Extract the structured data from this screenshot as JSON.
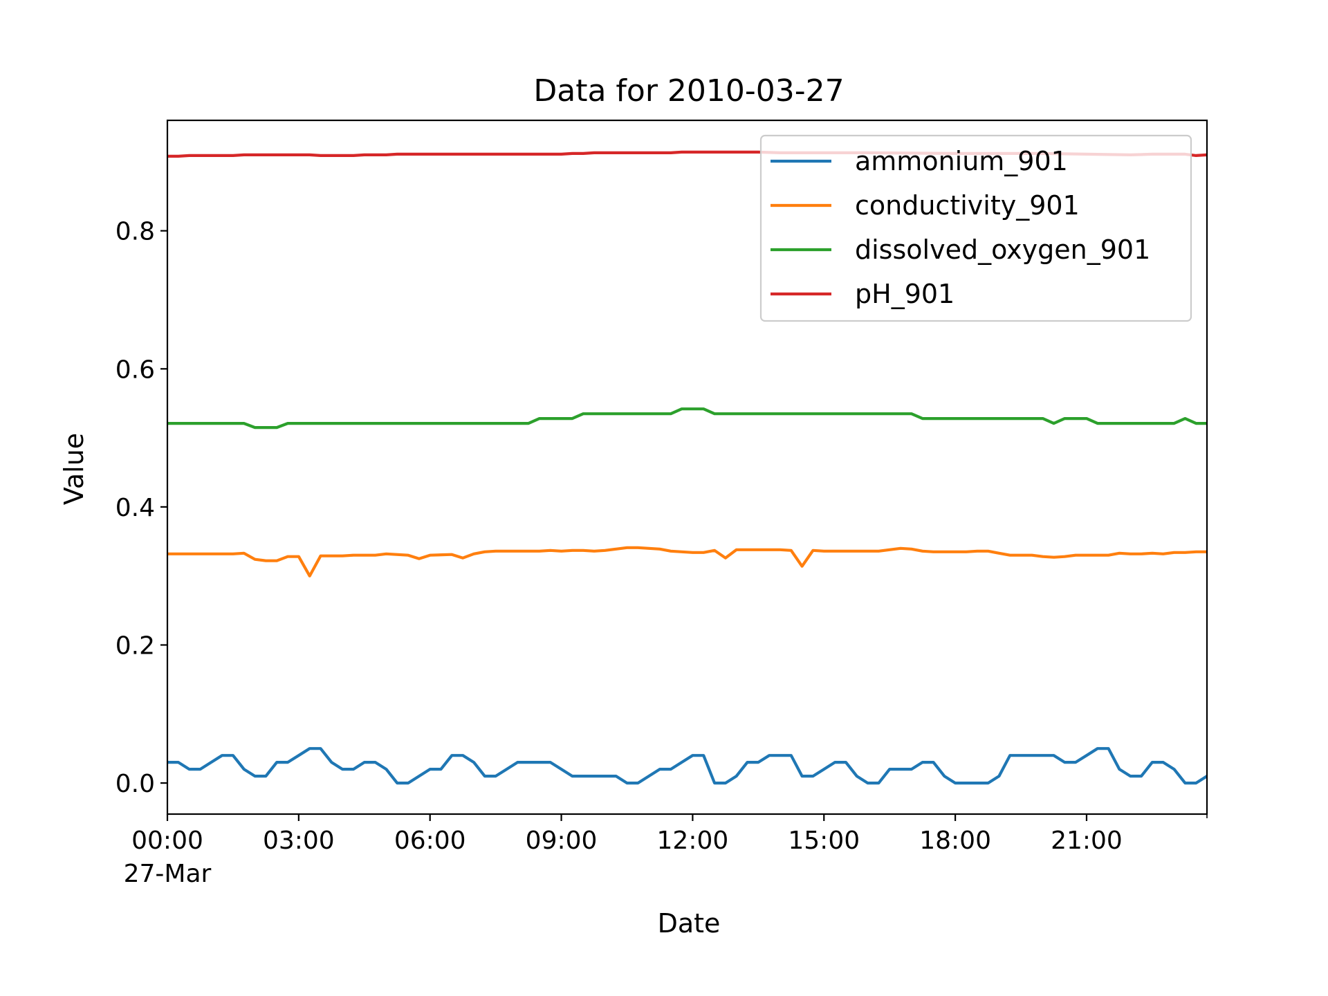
{
  "chart_data": {
    "type": "line",
    "title": "Data for 2010-03-27",
    "xlabel": "Date",
    "ylabel": "Value",
    "xlim": [
      "2010-03-27 00:00",
      "2010-03-27 23:45"
    ],
    "ylim": [
      -0.045,
      0.96
    ],
    "x_ticks": [
      {
        "value": "2010-03-27 00:00",
        "label": "00:00",
        "sublabel": "27-Mar"
      },
      {
        "value": "2010-03-27 03:00",
        "label": "03:00"
      },
      {
        "value": "2010-03-27 06:00",
        "label": "06:00"
      },
      {
        "value": "2010-03-27 09:00",
        "label": "09:00"
      },
      {
        "value": "2010-03-27 12:00",
        "label": "12:00"
      },
      {
        "value": "2010-03-27 15:00",
        "label": "15:00"
      },
      {
        "value": "2010-03-27 18:00",
        "label": "18:00"
      },
      {
        "value": "2010-03-27 21:00",
        "label": "21:00"
      }
    ],
    "y_ticks": [
      {
        "value": 0.0,
        "label": "0.0"
      },
      {
        "value": 0.2,
        "label": "0.2"
      },
      {
        "value": 0.4,
        "label": "0.4"
      },
      {
        "value": 0.6,
        "label": "0.6"
      },
      {
        "value": 0.8,
        "label": "0.8"
      }
    ],
    "grid": false,
    "legend_position": "top-right",
    "series": [
      {
        "name": "ammonium_901",
        "color": "#1f77b4",
        "points": [
          [
            "2010-03-27 00:00",
            0.03
          ],
          [
            "2010-03-27 00:15",
            0.03
          ],
          [
            "2010-03-27 00:30",
            0.02
          ],
          [
            "2010-03-27 00:45",
            0.02
          ],
          [
            "2010-03-27 01:00",
            0.03
          ],
          [
            "2010-03-27 01:15",
            0.04
          ],
          [
            "2010-03-27 01:30",
            0.04
          ],
          [
            "2010-03-27 01:45",
            0.02
          ],
          [
            "2010-03-27 02:00",
            0.01
          ],
          [
            "2010-03-27 02:15",
            0.01
          ],
          [
            "2010-03-27 02:30",
            0.03
          ],
          [
            "2010-03-27 02:45",
            0.03
          ],
          [
            "2010-03-27 03:00",
            0.04
          ],
          [
            "2010-03-27 03:15",
            0.05
          ],
          [
            "2010-03-27 03:30",
            0.05
          ],
          [
            "2010-03-27 03:45",
            0.03
          ],
          [
            "2010-03-27 04:00",
            0.02
          ],
          [
            "2010-03-27 04:15",
            0.02
          ],
          [
            "2010-03-27 04:30",
            0.03
          ],
          [
            "2010-03-27 04:45",
            0.03
          ],
          [
            "2010-03-27 05:00",
            0.02
          ],
          [
            "2010-03-27 05:15",
            0.0
          ],
          [
            "2010-03-27 05:30",
            0.0
          ],
          [
            "2010-03-27 05:45",
            0.01
          ],
          [
            "2010-03-27 06:00",
            0.02
          ],
          [
            "2010-03-27 06:15",
            0.02
          ],
          [
            "2010-03-27 06:30",
            0.04
          ],
          [
            "2010-03-27 06:45",
            0.04
          ],
          [
            "2010-03-27 07:00",
            0.03
          ],
          [
            "2010-03-27 07:15",
            0.01
          ],
          [
            "2010-03-27 07:30",
            0.01
          ],
          [
            "2010-03-27 07:45",
            0.02
          ],
          [
            "2010-03-27 08:00",
            0.03
          ],
          [
            "2010-03-27 08:15",
            0.03
          ],
          [
            "2010-03-27 08:30",
            0.03
          ],
          [
            "2010-03-27 08:45",
            0.03
          ],
          [
            "2010-03-27 09:00",
            0.02
          ],
          [
            "2010-03-27 09:15",
            0.01
          ],
          [
            "2010-03-27 09:30",
            0.01
          ],
          [
            "2010-03-27 09:45",
            0.01
          ],
          [
            "2010-03-27 10:00",
            0.01
          ],
          [
            "2010-03-27 10:15",
            0.01
          ],
          [
            "2010-03-27 10:30",
            0.0
          ],
          [
            "2010-03-27 10:45",
            0.0
          ],
          [
            "2010-03-27 11:00",
            0.01
          ],
          [
            "2010-03-27 11:15",
            0.02
          ],
          [
            "2010-03-27 11:30",
            0.02
          ],
          [
            "2010-03-27 11:45",
            0.03
          ],
          [
            "2010-03-27 12:00",
            0.04
          ],
          [
            "2010-03-27 12:15",
            0.04
          ],
          [
            "2010-03-27 12:30",
            0.0
          ],
          [
            "2010-03-27 12:45",
            0.0
          ],
          [
            "2010-03-27 13:00",
            0.01
          ],
          [
            "2010-03-27 13:15",
            0.03
          ],
          [
            "2010-03-27 13:30",
            0.03
          ],
          [
            "2010-03-27 13:45",
            0.04
          ],
          [
            "2010-03-27 14:00",
            0.04
          ],
          [
            "2010-03-27 14:15",
            0.04
          ],
          [
            "2010-03-27 14:30",
            0.01
          ],
          [
            "2010-03-27 14:45",
            0.01
          ],
          [
            "2010-03-27 15:00",
            0.02
          ],
          [
            "2010-03-27 15:15",
            0.03
          ],
          [
            "2010-03-27 15:30",
            0.03
          ],
          [
            "2010-03-27 15:45",
            0.01
          ],
          [
            "2010-03-27 16:00",
            0.0
          ],
          [
            "2010-03-27 16:15",
            0.0
          ],
          [
            "2010-03-27 16:30",
            0.02
          ],
          [
            "2010-03-27 16:45",
            0.02
          ],
          [
            "2010-03-27 17:00",
            0.02
          ],
          [
            "2010-03-27 17:15",
            0.03
          ],
          [
            "2010-03-27 17:30",
            0.03
          ],
          [
            "2010-03-27 17:45",
            0.01
          ],
          [
            "2010-03-27 18:00",
            0.0
          ],
          [
            "2010-03-27 18:15",
            0.0
          ],
          [
            "2010-03-27 18:30",
            0.0
          ],
          [
            "2010-03-27 18:45",
            0.0
          ],
          [
            "2010-03-27 19:00",
            0.01
          ],
          [
            "2010-03-27 19:15",
            0.04
          ],
          [
            "2010-03-27 19:30",
            0.04
          ],
          [
            "2010-03-27 19:45",
            0.04
          ],
          [
            "2010-03-27 20:00",
            0.04
          ],
          [
            "2010-03-27 20:15",
            0.04
          ],
          [
            "2010-03-27 20:30",
            0.03
          ],
          [
            "2010-03-27 20:45",
            0.03
          ],
          [
            "2010-03-27 21:00",
            0.04
          ],
          [
            "2010-03-27 21:15",
            0.05
          ],
          [
            "2010-03-27 21:30",
            0.05
          ],
          [
            "2010-03-27 21:45",
            0.02
          ],
          [
            "2010-03-27 22:00",
            0.01
          ],
          [
            "2010-03-27 22:15",
            0.01
          ],
          [
            "2010-03-27 22:30",
            0.03
          ],
          [
            "2010-03-27 22:45",
            0.03
          ],
          [
            "2010-03-27 23:00",
            0.02
          ],
          [
            "2010-03-27 23:15",
            0.0
          ],
          [
            "2010-03-27 23:30",
            0.0
          ],
          [
            "2010-03-27 23:45",
            0.01
          ]
        ]
      },
      {
        "name": "conductivity_901",
        "color": "#ff7f0e",
        "points": [
          [
            "2010-03-27 00:00",
            0.332
          ],
          [
            "2010-03-27 00:30",
            0.332
          ],
          [
            "2010-03-27 01:00",
            0.332
          ],
          [
            "2010-03-27 01:30",
            0.332
          ],
          [
            "2010-03-27 01:45",
            0.333
          ],
          [
            "2010-03-27 02:00",
            0.324
          ],
          [
            "2010-03-27 02:15",
            0.322
          ],
          [
            "2010-03-27 02:30",
            0.322
          ],
          [
            "2010-03-27 02:45",
            0.328
          ],
          [
            "2010-03-27 03:00",
            0.328
          ],
          [
            "2010-03-27 03:15",
            0.3
          ],
          [
            "2010-03-27 03:30",
            0.329
          ],
          [
            "2010-03-27 04:00",
            0.329
          ],
          [
            "2010-03-27 04:15",
            0.33
          ],
          [
            "2010-03-27 04:45",
            0.33
          ],
          [
            "2010-03-27 05:00",
            0.332
          ],
          [
            "2010-03-27 05:30",
            0.33
          ],
          [
            "2010-03-27 05:45",
            0.325
          ],
          [
            "2010-03-27 06:00",
            0.33
          ],
          [
            "2010-03-27 06:30",
            0.331
          ],
          [
            "2010-03-27 06:45",
            0.326
          ],
          [
            "2010-03-27 07:00",
            0.332
          ],
          [
            "2010-03-27 07:15",
            0.335
          ],
          [
            "2010-03-27 07:30",
            0.336
          ],
          [
            "2010-03-27 08:00",
            0.336
          ],
          [
            "2010-03-27 08:30",
            0.336
          ],
          [
            "2010-03-27 08:45",
            0.337
          ],
          [
            "2010-03-27 09:00",
            0.336
          ],
          [
            "2010-03-27 09:15",
            0.337
          ],
          [
            "2010-03-27 09:30",
            0.337
          ],
          [
            "2010-03-27 09:45",
            0.336
          ],
          [
            "2010-03-27 10:00",
            0.337
          ],
          [
            "2010-03-27 10:15",
            0.339
          ],
          [
            "2010-03-27 10:30",
            0.341
          ],
          [
            "2010-03-27 10:45",
            0.341
          ],
          [
            "2010-03-27 11:00",
            0.34
          ],
          [
            "2010-03-27 11:15",
            0.339
          ],
          [
            "2010-03-27 11:30",
            0.336
          ],
          [
            "2010-03-27 11:45",
            0.335
          ],
          [
            "2010-03-27 12:00",
            0.334
          ],
          [
            "2010-03-27 12:15",
            0.334
          ],
          [
            "2010-03-27 12:30",
            0.337
          ],
          [
            "2010-03-27 12:45",
            0.326
          ],
          [
            "2010-03-27 13:00",
            0.338
          ],
          [
            "2010-03-27 13:30",
            0.338
          ],
          [
            "2010-03-27 14:00",
            0.338
          ],
          [
            "2010-03-27 14:15",
            0.337
          ],
          [
            "2010-03-27 14:30",
            0.314
          ],
          [
            "2010-03-27 14:45",
            0.337
          ],
          [
            "2010-03-27 15:00",
            0.336
          ],
          [
            "2010-03-27 15:30",
            0.336
          ],
          [
            "2010-03-27 16:00",
            0.336
          ],
          [
            "2010-03-27 16:15",
            0.336
          ],
          [
            "2010-03-27 16:30",
            0.338
          ],
          [
            "2010-03-27 16:45",
            0.34
          ],
          [
            "2010-03-27 17:00",
            0.339
          ],
          [
            "2010-03-27 17:15",
            0.336
          ],
          [
            "2010-03-27 17:30",
            0.335
          ],
          [
            "2010-03-27 18:00",
            0.335
          ],
          [
            "2010-03-27 18:15",
            0.335
          ],
          [
            "2010-03-27 18:30",
            0.336
          ],
          [
            "2010-03-27 18:45",
            0.336
          ],
          [
            "2010-03-27 19:00",
            0.333
          ],
          [
            "2010-03-27 19:15",
            0.33
          ],
          [
            "2010-03-27 19:45",
            0.33
          ],
          [
            "2010-03-27 20:00",
            0.328
          ],
          [
            "2010-03-27 20:15",
            0.327
          ],
          [
            "2010-03-27 20:30",
            0.328
          ],
          [
            "2010-03-27 20:45",
            0.33
          ],
          [
            "2010-03-27 21:00",
            0.33
          ],
          [
            "2010-03-27 21:30",
            0.33
          ],
          [
            "2010-03-27 21:45",
            0.333
          ],
          [
            "2010-03-27 22:00",
            0.332
          ],
          [
            "2010-03-27 22:15",
            0.332
          ],
          [
            "2010-03-27 22:30",
            0.333
          ],
          [
            "2010-03-27 22:45",
            0.332
          ],
          [
            "2010-03-27 23:00",
            0.334
          ],
          [
            "2010-03-27 23:15",
            0.334
          ],
          [
            "2010-03-27 23:30",
            0.335
          ],
          [
            "2010-03-27 23:45",
            0.335
          ]
        ]
      },
      {
        "name": "dissolved_oxygen_901",
        "color": "#2ca02c",
        "points": [
          [
            "2010-03-27 00:00",
            0.521
          ],
          [
            "2010-03-27 01:45",
            0.521
          ],
          [
            "2010-03-27 02:00",
            0.515
          ],
          [
            "2010-03-27 02:30",
            0.515
          ],
          [
            "2010-03-27 02:45",
            0.521
          ],
          [
            "2010-03-27 08:15",
            0.521
          ],
          [
            "2010-03-27 08:30",
            0.528
          ],
          [
            "2010-03-27 09:15",
            0.528
          ],
          [
            "2010-03-27 09:30",
            0.535
          ],
          [
            "2010-03-27 11:30",
            0.535
          ],
          [
            "2010-03-27 11:45",
            0.542
          ],
          [
            "2010-03-27 12:15",
            0.542
          ],
          [
            "2010-03-27 12:30",
            0.535
          ],
          [
            "2010-03-27 17:00",
            0.535
          ],
          [
            "2010-03-27 17:15",
            0.528
          ],
          [
            "2010-03-27 20:00",
            0.528
          ],
          [
            "2010-03-27 20:15",
            0.521
          ],
          [
            "2010-03-27 20:30",
            0.528
          ],
          [
            "2010-03-27 21:00",
            0.528
          ],
          [
            "2010-03-27 21:15",
            0.521
          ],
          [
            "2010-03-27 23:00",
            0.521
          ],
          [
            "2010-03-27 23:15",
            0.528
          ],
          [
            "2010-03-27 23:30",
            0.521
          ],
          [
            "2010-03-27 23:45",
            0.521
          ]
        ]
      },
      {
        "name": "pH_901",
        "color": "#d62728",
        "points": [
          [
            "2010-03-27 00:00",
            0.908
          ],
          [
            "2010-03-27 00:15",
            0.908
          ],
          [
            "2010-03-27 00:30",
            0.909
          ],
          [
            "2010-03-27 01:30",
            0.909
          ],
          [
            "2010-03-27 01:45",
            0.91
          ],
          [
            "2010-03-27 03:15",
            0.91
          ],
          [
            "2010-03-27 03:30",
            0.909
          ],
          [
            "2010-03-27 04:15",
            0.909
          ],
          [
            "2010-03-27 04:30",
            0.91
          ],
          [
            "2010-03-27 05:00",
            0.91
          ],
          [
            "2010-03-27 05:15",
            0.911
          ],
          [
            "2010-03-27 09:00",
            0.911
          ],
          [
            "2010-03-27 09:15",
            0.912
          ],
          [
            "2010-03-27 09:30",
            0.912
          ],
          [
            "2010-03-27 09:45",
            0.913
          ],
          [
            "2010-03-27 11:30",
            0.913
          ],
          [
            "2010-03-27 11:45",
            0.914
          ],
          [
            "2010-03-27 13:30",
            0.914
          ],
          [
            "2010-03-27 14:00",
            0.913
          ],
          [
            "2010-03-27 16:00",
            0.913
          ],
          [
            "2010-03-27 18:00",
            0.912
          ],
          [
            "2010-03-27 20:00",
            0.912
          ],
          [
            "2010-03-27 21:00",
            0.911
          ],
          [
            "2010-03-27 22:00",
            0.91
          ],
          [
            "2010-03-27 22:30",
            0.911
          ],
          [
            "2010-03-27 23:15",
            0.911
          ],
          [
            "2010-03-27 23:30",
            0.909
          ],
          [
            "2010-03-27 23:45",
            0.91
          ]
        ]
      }
    ]
  }
}
